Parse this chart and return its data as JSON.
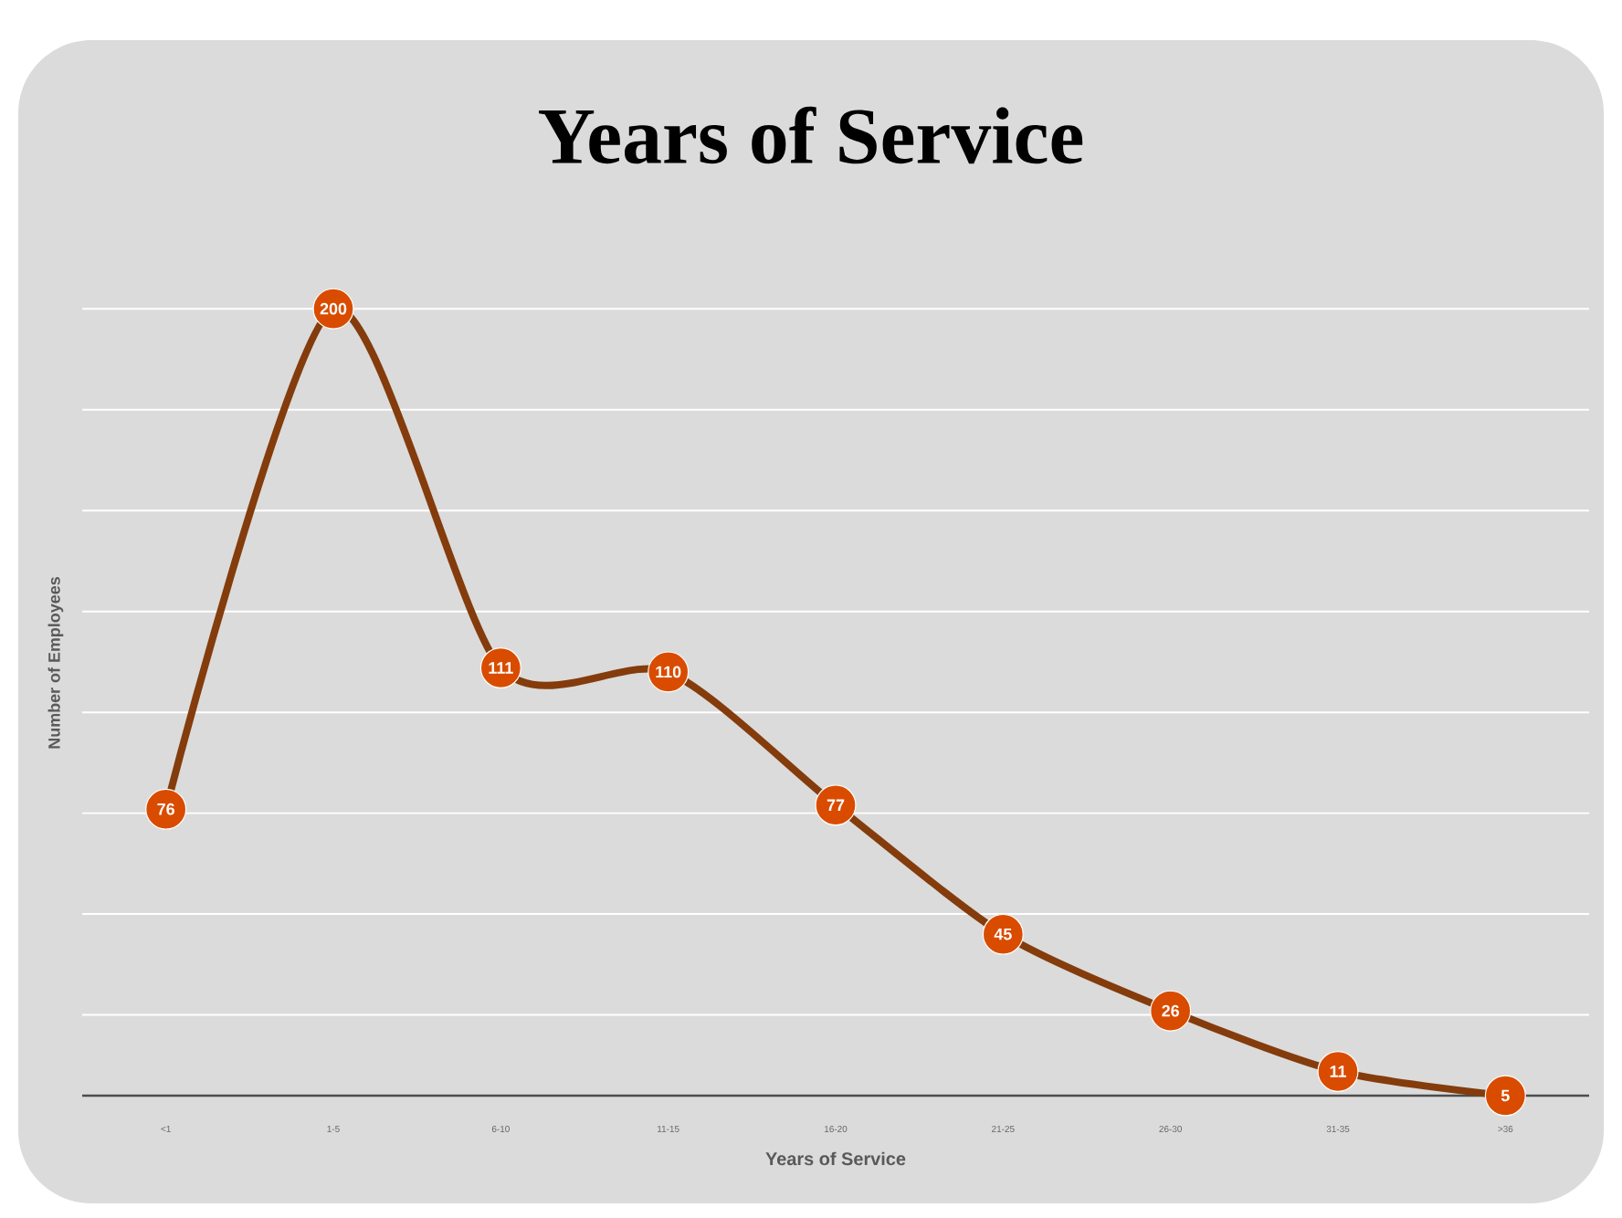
{
  "chart_data": {
    "type": "line",
    "title": "Years of Service",
    "xlabel": "Years of Service",
    "ylabel": "Number of Employees",
    "categories": [
      "<1",
      "1-5",
      "6-10",
      "11-15",
      "16-20",
      "21-25",
      "26-30",
      "31-35",
      ">36"
    ],
    "series": [
      {
        "color": "#843c0c",
        "values": [
          76,
          200,
          111,
          110,
          77,
          45,
          26,
          11,
          5
        ]
      }
    ],
    "grid": "y",
    "marker": "circle",
    "data_labels": true,
    "line_style": "solid",
    "tick_labels": "x"
  }
}
